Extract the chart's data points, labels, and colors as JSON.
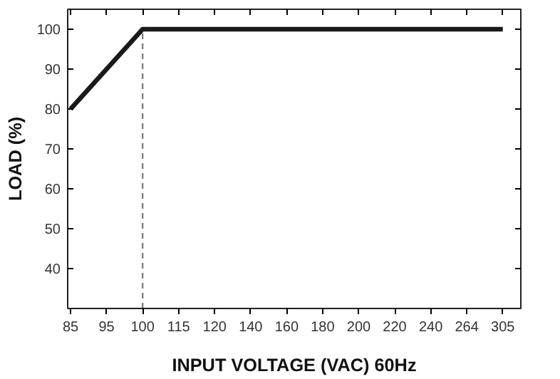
{
  "chart_data": {
    "type": "line",
    "xlabel": "INPUT VOLTAGE (VAC) 60Hz",
    "ylabel": "LOAD (%)",
    "categories": [
      "85",
      "95",
      "100",
      "115",
      "120",
      "140",
      "160",
      "180",
      "200",
      "220",
      "240",
      "264",
      "305"
    ],
    "series": [
      {
        "color": "#1a1a1a",
        "values": [
          80,
          90,
          100,
          100,
          100,
          100,
          100,
          100,
          100,
          100,
          100,
          100,
          100
        ]
      }
    ],
    "ylim": [
      30,
      105
    ],
    "yticks": [
      40,
      50,
      60,
      70,
      80,
      90,
      100
    ],
    "grid": false,
    "marker": "none",
    "line_style": "solid",
    "ref_lines": [
      {
        "axis": "x",
        "value": "100",
        "color": "#808080",
        "line_style": "dashed"
      }
    ]
  }
}
